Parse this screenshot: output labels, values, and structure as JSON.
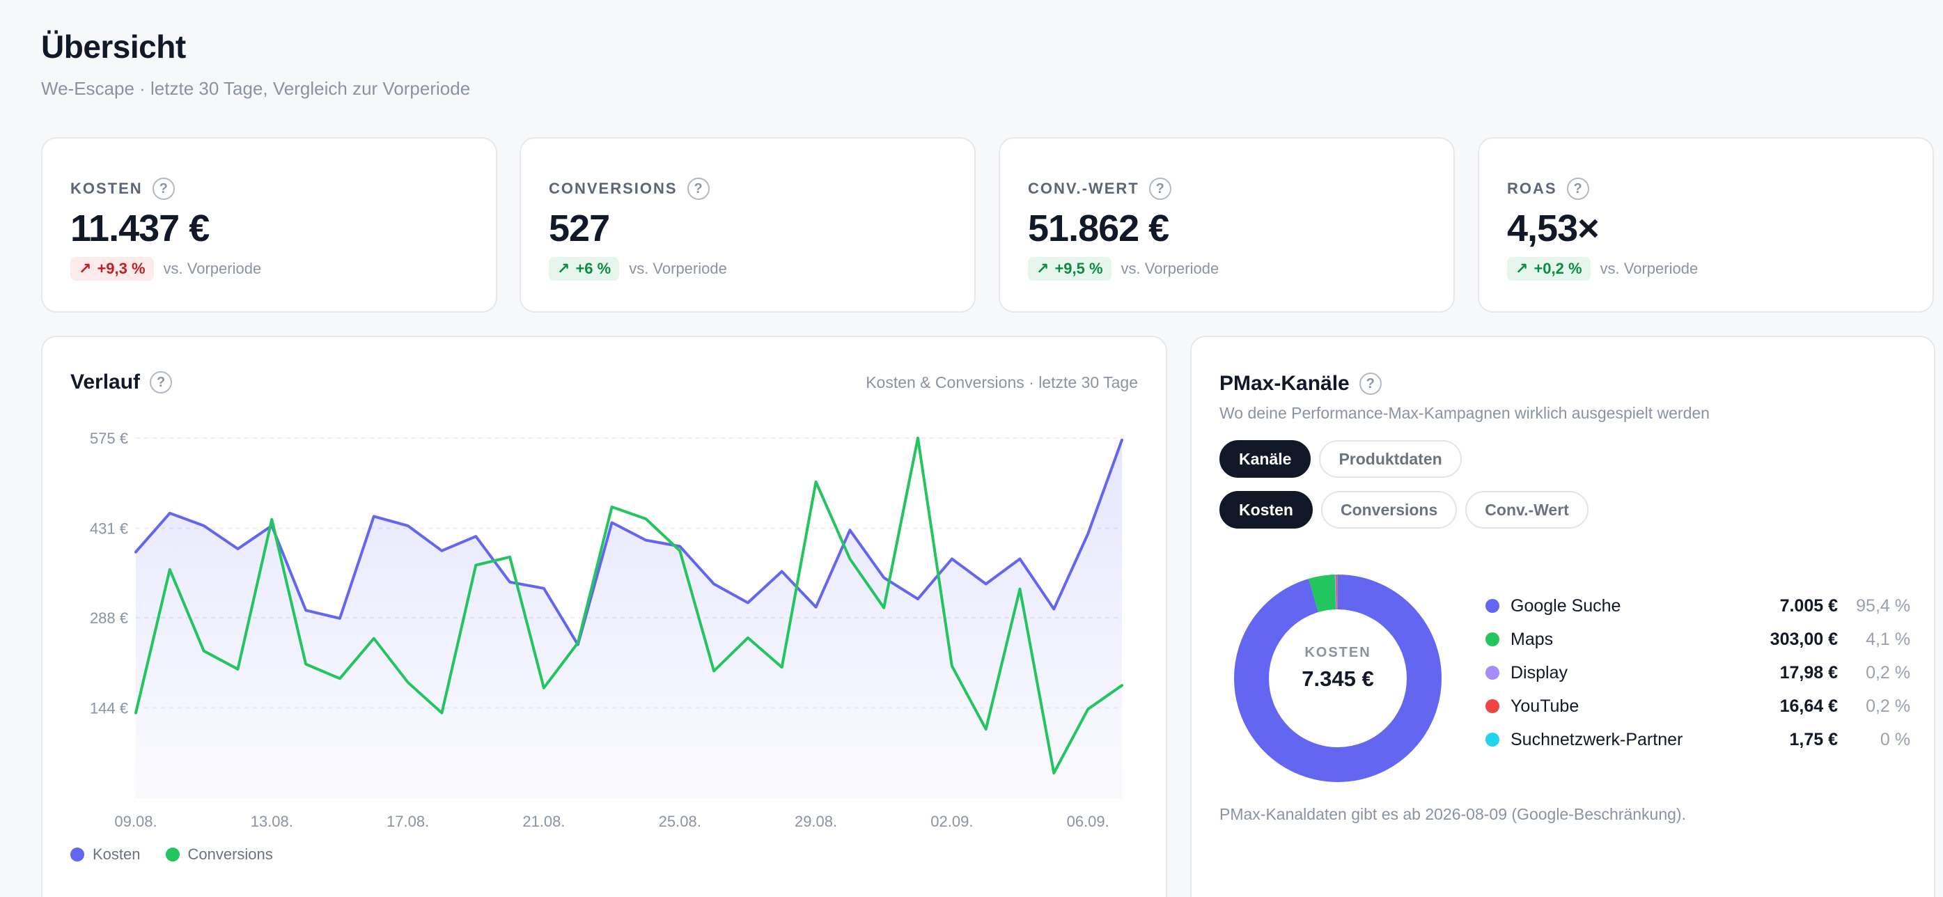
{
  "header": {
    "title": "Übersicht",
    "subtitle": "We-Escape · letzte 30 Tage, Vergleich zur Vorperiode"
  },
  "kpis": [
    {
      "label": "KOSTEN",
      "value": "11.437 €",
      "delta": "+9,3 %",
      "trend": "bad",
      "vs": "vs. Vorperiode"
    },
    {
      "label": "CONVERSIONS",
      "value": "527",
      "delta": "+6 %",
      "trend": "good",
      "vs": "vs. Vorperiode"
    },
    {
      "label": "CONV.-WERT",
      "value": "51.862 €",
      "delta": "+9,5 %",
      "trend": "good",
      "vs": "vs. Vorperiode"
    },
    {
      "label": "ROAS",
      "value": "4,53×",
      "delta": "+0,2 %",
      "trend": "good",
      "vs": "vs. Vorperiode"
    }
  ],
  "help_glyph": "?",
  "trend_arrow": "↗",
  "verlauf": {
    "title": "Verlauf",
    "caption": "Kosten & Conversions · letzte 30 Tage",
    "legend": [
      {
        "name": "Kosten",
        "color": "#6366f1"
      },
      {
        "name": "Conversions",
        "color": "#22c55e"
      }
    ]
  },
  "chart_data": {
    "type": "line",
    "y_ticks": [
      "575 €",
      "431 €",
      "288 €",
      "144 €"
    ],
    "y_tick_values": [
      575,
      431,
      288,
      144
    ],
    "ylim": [
      0,
      575
    ],
    "x_tick_labels": [
      "09.08.",
      "13.08.",
      "17.08.",
      "21.08.",
      "25.08.",
      "29.08.",
      "02.09.",
      "06.09."
    ],
    "x_tick_index": [
      0,
      4,
      8,
      12,
      16,
      20,
      24,
      28
    ],
    "grid": true,
    "series": [
      {
        "name": "Kosten",
        "color": "#6366f1",
        "fill": true,
        "values": [
          393,
          455,
          435,
          398,
          435,
          300,
          287,
          450,
          435,
          395,
          418,
          345,
          335,
          245,
          440,
          412,
          402,
          342,
          312,
          362,
          305,
          428,
          352,
          318,
          382,
          342,
          382,
          302,
          422,
          572
        ]
      },
      {
        "name": "Conversions",
        "color": "#22c55e",
        "fill": false,
        "values": [
          136,
          365,
          235,
          206,
          445,
          214,
          191,
          255,
          185,
          136,
          372,
          385,
          176,
          248,
          465,
          446,
          395,
          203,
          256,
          209,
          505,
          382,
          304,
          575,
          211,
          110,
          334,
          40,
          142,
          180
        ]
      }
    ]
  },
  "pmax": {
    "title": "PMax-Kanäle",
    "subtitle": "Wo deine Performance-Max-Kampagnen wirklich ausgespielt werden",
    "view_tabs": [
      {
        "label": "Kanäle",
        "active": true
      },
      {
        "label": "Produktdaten",
        "active": false
      }
    ],
    "metric_tabs": [
      {
        "label": "Kosten",
        "active": true
      },
      {
        "label": "Conversions",
        "active": false
      },
      {
        "label": "Conv.-Wert",
        "active": false
      }
    ],
    "donut_label": "KOSTEN",
    "donut_value": "7.345 €",
    "channels": [
      {
        "name": "Google Suche",
        "amount": "7.005 €",
        "share": "95,4 %",
        "fraction": 0.954,
        "color": "#6366f1"
      },
      {
        "name": "Maps",
        "amount": "303,00 €",
        "share": "4,1 %",
        "fraction": 0.041,
        "color": "#22c55e"
      },
      {
        "name": "Display",
        "amount": "17,98 €",
        "share": "0,2 %",
        "fraction": 0.002,
        "color": "#a78bfa"
      },
      {
        "name": "YouTube",
        "amount": "16,64 €",
        "share": "0,2 %",
        "fraction": 0.002,
        "color": "#ef4444"
      },
      {
        "name": "Suchnetzwerk-Partner",
        "amount": "1,75 €",
        "share": "0 %",
        "fraction": 0.0002,
        "color": "#22d3ee"
      }
    ],
    "note": "PMax-Kanaldaten gibt es ab 2026-08-09 (Google-Beschränkung)."
  }
}
